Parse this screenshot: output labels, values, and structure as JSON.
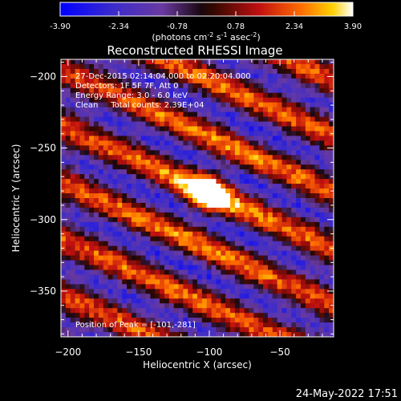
{
  "colorbar": {
    "ticks": [
      "-3.90",
      "-2.34",
      "-0.78",
      "0.78",
      "2.34",
      "3.90"
    ],
    "unit_label_parts": [
      "(photons cm",
      "-2",
      " s",
      "-1",
      " asec",
      "-2",
      ")"
    ]
  },
  "chart_data": {
    "type": "heatmap",
    "title": "Reconstructed RHESSI Image",
    "xlabel": "Heliocentric X (arcsec)",
    "ylabel": "Heliocentric Y (arcsec)",
    "xlim": [
      -205,
      -12
    ],
    "ylim": [
      -382,
      -188
    ],
    "xticks": [
      -200,
      -150,
      -100,
      -50
    ],
    "yticks": [
      -200,
      -250,
      -300,
      -350
    ],
    "value_range": [
      -3.9,
      3.9
    ],
    "grid": false,
    "info_lines": [
      "27-Dec-2015 02:14:04.000 to 02:20:04.000",
      "Detectors: 1F 5F 7F, Att 0",
      "Energy Range: 3.0 - 6.0 keV",
      "Clean     Total counts: 2.39E+04"
    ],
    "peak_label": "Position of Peak = [-101,-281]",
    "peak": [
      -101,
      -281
    ]
  },
  "footer": {
    "timestamp": "24-May-2022 17:51"
  }
}
